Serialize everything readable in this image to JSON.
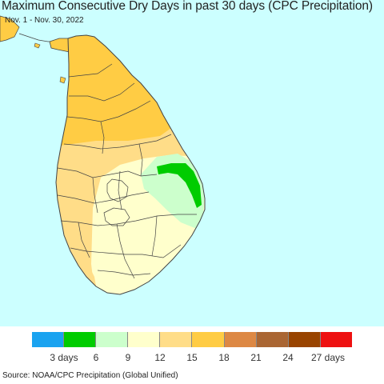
{
  "title": "Maximum Consecutive Dry Days in past 30 days (CPC Precipitation)",
  "date_range": "Nov. 1 - Nov. 30, 2022",
  "source": "Source: NOAA/CPC Precipitation (Global Unified)",
  "colors": {
    "ocean": "#ccffff",
    "boundary": "#444444"
  },
  "legend": {
    "colors": [
      "#1aa3f0",
      "#00cc00",
      "#ccffcc",
      "#ffffcc",
      "#ffdd88",
      "#ffcc44",
      "#dd8844",
      "#aa6633",
      "#994400",
      "#ee1111"
    ],
    "labels": [
      "3 days",
      "6",
      "9",
      "12",
      "15",
      "18",
      "21",
      "24",
      "27 days"
    ]
  }
}
